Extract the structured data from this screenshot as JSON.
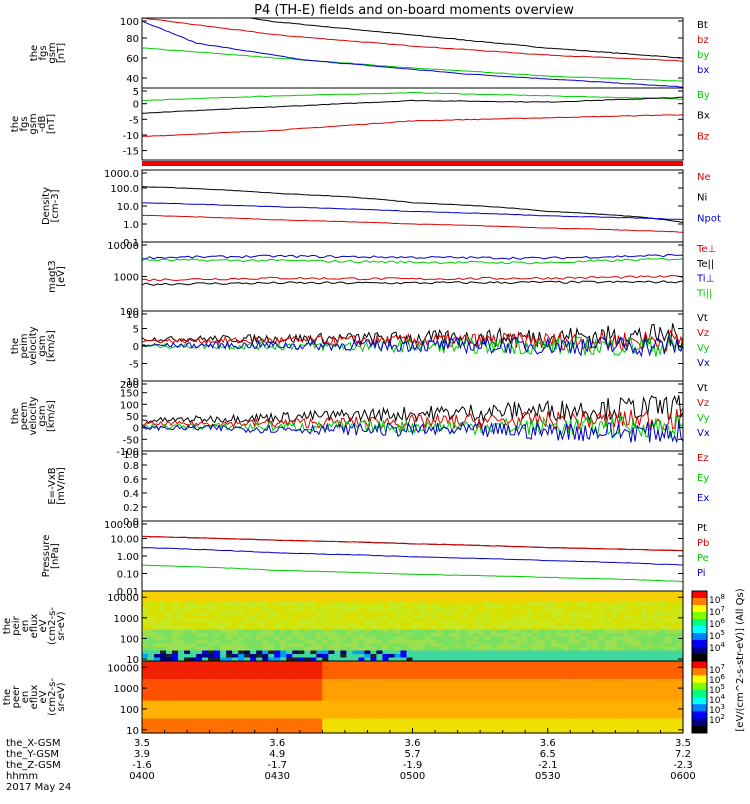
{
  "title": "P4 (TH-E) fields and on-board moments overview",
  "chart_data": [
    {
      "type": "line",
      "ylabel": [
        "the",
        "fgs",
        "gsm",
        "[nT]"
      ],
      "yticks": [
        "100",
        "80",
        "60",
        "40"
      ],
      "ylim": [
        30,
        100
      ],
      "series": [
        {
          "name": "Bt",
          "color": "#000000",
          "x": [
            0,
            0.25,
            0.5,
            0.75,
            1
          ],
          "values": [
            115,
            96,
            83,
            70,
            60
          ]
        },
        {
          "name": "bz",
          "color": "#dd0000",
          "x": [
            0,
            0.25,
            0.5,
            0.75,
            1
          ],
          "values": [
            100,
            83,
            72,
            63,
            57
          ]
        },
        {
          "name": "by",
          "color": "#00cc00",
          "x": [
            0,
            0.25,
            0.5,
            0.75,
            1
          ],
          "values": [
            70,
            60,
            50,
            42,
            37
          ]
        },
        {
          "name": "bx",
          "color": "#0000cc",
          "x": [
            0,
            0.1,
            0.3,
            0.6,
            1
          ],
          "values": [
            97,
            75,
            58,
            44,
            31
          ]
        }
      ]
    },
    {
      "type": "line",
      "ylabel": [
        "the",
        "fgs",
        "gsm",
        "-dB",
        "[nT]"
      ],
      "yticks": [
        "5",
        "0",
        "-5",
        "-10",
        "-15"
      ],
      "ylim": [
        -18,
        5
      ],
      "series": [
        {
          "name": "By",
          "color": "#00cc00",
          "x": [
            0,
            0.25,
            0.5,
            0.75,
            1
          ],
          "values": [
            1,
            2.5,
            3.5,
            2.5,
            1.5
          ]
        },
        {
          "name": "Bx",
          "color": "#000000",
          "x": [
            0,
            0.25,
            0.5,
            0.75,
            1
          ],
          "values": [
            -3,
            -1,
            1,
            0.5,
            2
          ]
        },
        {
          "name": "Bz",
          "color": "#dd0000",
          "x": [
            0,
            0.25,
            0.5,
            0.75,
            1
          ],
          "values": [
            -10.5,
            -8.5,
            -5.5,
            -4.5,
            -3.5
          ]
        }
      ]
    },
    {
      "type": "line",
      "ylabel": [
        "Density",
        "[cm-3]"
      ],
      "yticks": [
        "1000.0",
        "100.0",
        "10.0",
        "1.0",
        "0.1"
      ],
      "yscale": "log",
      "ylim": [
        0.1,
        1000
      ],
      "series": [
        {
          "name": "Ne",
          "color": "#dd0000",
          "x": [
            0,
            0.25,
            0.5,
            0.75,
            1
          ],
          "values": [
            3,
            1.7,
            1,
            0.6,
            0.35
          ]
        },
        {
          "name": "Ni",
          "color": "#000000",
          "x": [
            0,
            0.25,
            0.5,
            0.75,
            1
          ],
          "values": [
            120,
            50,
            15,
            5,
            1.2
          ]
        },
        {
          "name": "Npot",
          "color": "#0000cc",
          "x": [
            0,
            0.25,
            0.5,
            0.75,
            1
          ],
          "values": [
            15,
            9,
            5,
            2.8,
            1.8
          ]
        }
      ]
    },
    {
      "type": "line",
      "ylabel": [
        "magt3",
        "[eV]"
      ],
      "yticks": [
        "10000",
        "1000",
        "100"
      ],
      "yscale": "log",
      "ylim": [
        100,
        10000
      ],
      "series": [
        {
          "name": "Te⊥",
          "color": "#dd0000",
          "x": [
            0,
            0.25,
            0.5,
            0.75,
            1
          ],
          "values": [
            800,
            900,
            850,
            900,
            1000
          ]
        },
        {
          "name": "Te||",
          "color": "#000000",
          "x": [
            0,
            0.25,
            0.5,
            0.75,
            1
          ],
          "values": [
            600,
            650,
            650,
            680,
            700
          ]
        },
        {
          "name": "Ti⊥",
          "color": "#0000cc",
          "x": [
            0,
            0.25,
            0.5,
            0.75,
            1
          ],
          "values": [
            3500,
            3900,
            3600,
            3400,
            4200
          ]
        },
        {
          "name": "Ti||",
          "color": "#00cc00",
          "x": [
            0,
            0.25,
            0.5,
            0.75,
            1
          ],
          "values": [
            3000,
            2900,
            2600,
            2500,
            3300
          ]
        }
      ]
    },
    {
      "type": "line",
      "ylabel": [
        "the",
        "peim",
        "velocity",
        "gsm",
        "[km/s]"
      ],
      "yticks": [
        "10",
        "5",
        "0",
        "-5",
        "-10"
      ],
      "ylim": [
        -10,
        10
      ],
      "series": [
        {
          "name": "Vt",
          "color": "#000000",
          "x": [
            0,
            0.5,
            1
          ],
          "values": [
            2,
            2.2,
            3
          ]
        },
        {
          "name": "Vz",
          "color": "#dd0000",
          "x": [
            0,
            0.5,
            1
          ],
          "values": [
            1.5,
            1.5,
            1.5
          ]
        },
        {
          "name": "Vy",
          "color": "#00cc00",
          "x": [
            0,
            0.5,
            1
          ],
          "values": [
            0,
            0,
            0
          ]
        },
        {
          "name": "Vx",
          "color": "#0000cc",
          "x": [
            0,
            0.5,
            1
          ],
          "values": [
            0.2,
            0.2,
            0
          ]
        }
      ]
    },
    {
      "type": "line",
      "ylabel": [
        "the",
        "peem",
        "velocity",
        "gsm",
        "[km/s]"
      ],
      "yticks": [
        "200",
        "150",
        "100",
        "50",
        "0",
        "-50",
        "-100"
      ],
      "ylim": [
        -100,
        200
      ],
      "series": [
        {
          "name": "Vt",
          "color": "#000000",
          "x": [
            0,
            0.5,
            1
          ],
          "values": [
            30,
            60,
            90
          ]
        },
        {
          "name": "Vz",
          "color": "#dd0000",
          "x": [
            0,
            0.5,
            1
          ],
          "values": [
            15,
            25,
            35
          ]
        },
        {
          "name": "Vy",
          "color": "#00cc00",
          "x": [
            0,
            0.5,
            1
          ],
          "values": [
            5,
            5,
            5
          ]
        },
        {
          "name": "Vx",
          "color": "#0000cc",
          "x": [
            0,
            0.5,
            1
          ],
          "values": [
            0,
            -10,
            -20
          ]
        }
      ]
    },
    {
      "type": "line",
      "ylabel": [
        "E=-VxB",
        "[mV/m]"
      ],
      "yticks": [
        "1.0",
        "0.8",
        "0.6",
        "0.4",
        "0.2",
        "0.0"
      ],
      "ylim": [
        0,
        1
      ],
      "series": [
        {
          "name": "Ez",
          "color": "#dd0000",
          "x": [],
          "values": []
        },
        {
          "name": "Ey",
          "color": "#00cc00",
          "x": [],
          "values": []
        },
        {
          "name": "Ex",
          "color": "#0000cc",
          "x": [],
          "values": []
        }
      ]
    },
    {
      "type": "line",
      "ylabel": [
        "Pressure",
        "[nPa]"
      ],
      "yticks": [
        "100.00",
        "10.00",
        "1.00",
        "0.10",
        "0.01"
      ],
      "yscale": "log",
      "ylim": [
        0.01,
        100
      ],
      "series": [
        {
          "name": "Pt",
          "color": "#000000",
          "x": [
            0,
            0.25,
            0.5,
            0.75,
            1
          ],
          "values": [
            13,
            8,
            5,
            3,
            2
          ]
        },
        {
          "name": "Pb",
          "color": "#dd0000",
          "x": [
            0,
            0.25,
            0.5,
            0.75,
            1
          ],
          "values": [
            13,
            8,
            5,
            3,
            2
          ]
        },
        {
          "name": "Pe",
          "color": "#00cc00",
          "x": [
            0,
            0.25,
            0.5,
            0.75,
            1
          ],
          "values": [
            0.3,
            0.15,
            0.09,
            0.06,
            0.035
          ]
        },
        {
          "name": "Pi",
          "color": "#0000cc",
          "x": [
            0,
            0.25,
            0.5,
            0.75,
            1
          ],
          "values": [
            3,
            1.5,
            0.9,
            0.55,
            0.3
          ]
        }
      ]
    },
    {
      "type": "heatmap",
      "ylabel": [
        "the",
        "peir",
        "en",
        "eflux",
        "eV",
        "(cm2-s-",
        "sr-eV)"
      ],
      "yticks": [
        "10000",
        "1000",
        "100",
        "10"
      ],
      "yscale": "log",
      "ylim": [
        8,
        20000
      ],
      "colorbar_ticks": [
        "10^8",
        "10^7",
        "10^6",
        "10^5",
        "10^4"
      ]
    },
    {
      "type": "heatmap",
      "ylabel": [
        "the",
        "peer",
        "en",
        "eflux",
        "eV",
        "(cm2-s-",
        "sr-eV)"
      ],
      "yticks": [
        "10000",
        "1000",
        "100",
        "10"
      ],
      "yscale": "log",
      "ylim": [
        7,
        20000
      ],
      "colorbar_ticks": [
        "10^7",
        "10^6",
        "10^5",
        "10^4",
        "10^3",
        "10^2"
      ]
    }
  ],
  "colorbar_label": "[eV/(cm^2-s-str-eV)] (All Qs)",
  "colorbar_label_overlay": "eV/(cm^2-s-str-eV)",
  "xaxis": {
    "rows": [
      {
        "label": "the_X-GSM",
        "values": [
          "3.5",
          "3.6",
          "3.6",
          "3.6",
          "3.5"
        ]
      },
      {
        "label": "the_Y-GSM",
        "values": [
          "3.9",
          "4.9",
          "5.7",
          "6.5",
          "7.2"
        ]
      },
      {
        "label": "the_Z-GSM",
        "values": [
          "-1.6",
          "-1.7",
          "-1.9",
          "-2.1",
          "-2.3"
        ]
      },
      {
        "label": "hhmm",
        "values": [
          "0400",
          "0430",
          "0500",
          "0530",
          "0600"
        ]
      }
    ],
    "date": "2017 May 24"
  }
}
